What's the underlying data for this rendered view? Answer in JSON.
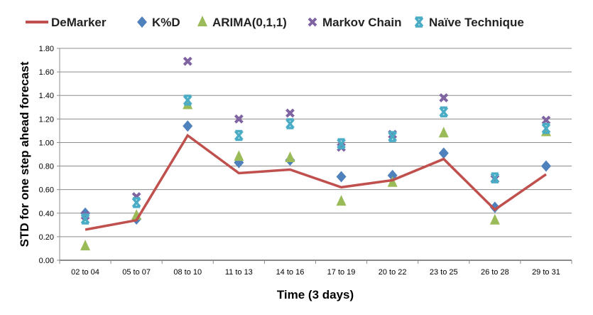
{
  "chart_data": {
    "type": "line",
    "title": "",
    "xlabel": "Time (3 days)",
    "ylabel": "STD for one step ahead forecast",
    "ylim": [
      0,
      1.8
    ],
    "ytick_step": 0.2,
    "grid": true,
    "legend_position": "top",
    "categories": [
      "02 to 04",
      "05 to 07",
      "08 to 10",
      "11 to 13",
      "14 to 16",
      "17 to 19",
      "20 to 22",
      "23 to 25",
      "26 to 28",
      "29 to 31"
    ],
    "series": [
      {
        "name": "DeMarker",
        "style": "line",
        "color": "#C0504D",
        "values": [
          0.26,
          0.34,
          1.06,
          0.74,
          0.77,
          0.62,
          0.68,
          0.86,
          0.43,
          0.73
        ]
      },
      {
        "name": "K%D",
        "style": "diamond",
        "color": "#4F81BD",
        "values": [
          0.4,
          0.35,
          1.14,
          0.83,
          0.85,
          0.71,
          0.72,
          0.91,
          0.45,
          0.8
        ]
      },
      {
        "name": "ARIMA(0,1,1)",
        "style": "triangle",
        "color": "#9BBB59",
        "values": [
          0.12,
          0.38,
          1.32,
          0.88,
          0.87,
          0.5,
          0.66,
          1.08,
          0.34,
          1.09
        ]
      },
      {
        "name": "Markov Chain",
        "style": "x",
        "color": "#8064A2",
        "values": [
          0.38,
          0.54,
          1.69,
          1.2,
          1.25,
          0.96,
          1.07,
          1.38,
          0.69,
          1.19
        ]
      },
      {
        "name": "Naïve Technique",
        "style": "star",
        "color": "#4BACC6",
        "values": [
          0.35,
          0.49,
          1.36,
          1.06,
          1.16,
          0.99,
          1.05,
          1.26,
          0.7,
          1.12
        ]
      }
    ]
  }
}
